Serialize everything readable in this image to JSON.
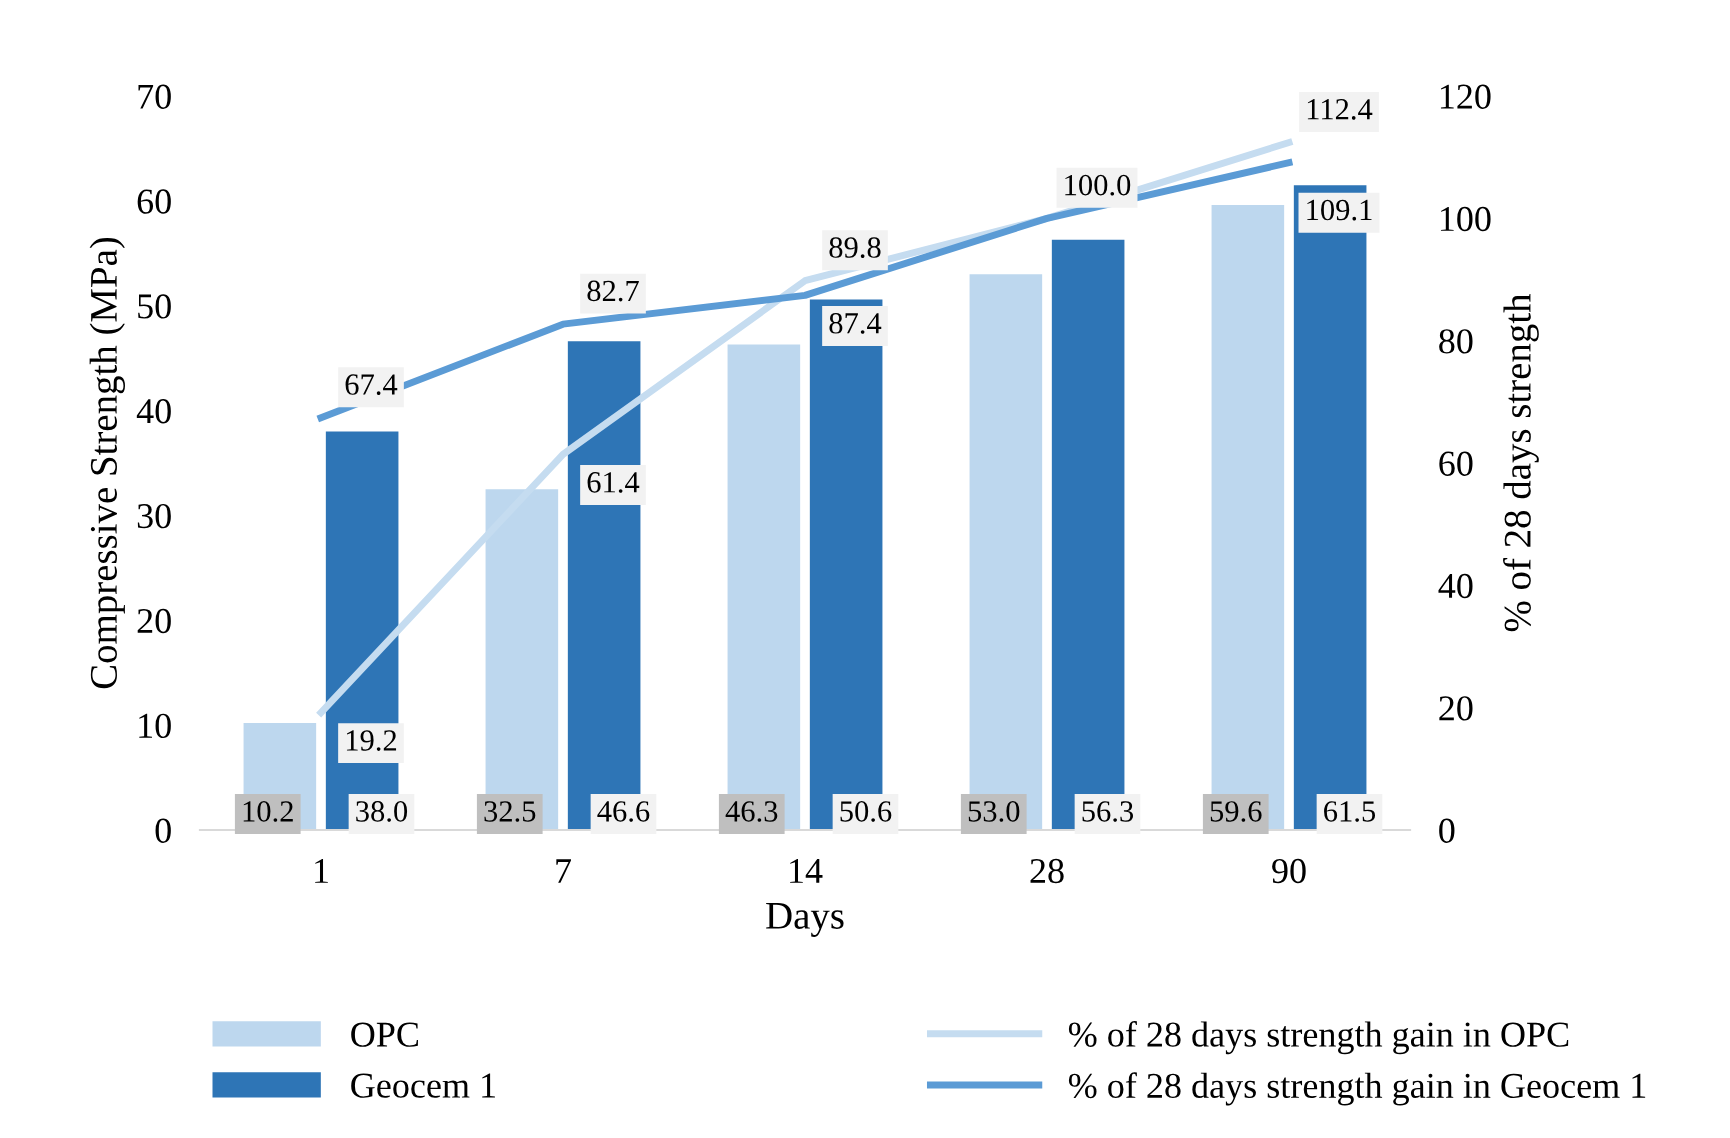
{
  "chart_data": {
    "type": "bar",
    "xlabel": "Days",
    "ylabel": "Compressive Strength (MPa)",
    "y2label": "% of 28 days strength",
    "categories": [
      "1",
      "7",
      "14",
      "28",
      "90"
    ],
    "series": [
      {
        "name": "OPC",
        "color": "#bdd7ee",
        "values": [
          10.2,
          32.5,
          46.3,
          53.0,
          59.6
        ],
        "value_labels": [
          "10.2",
          "32.5",
          "46.3",
          "53.0",
          "59.6"
        ]
      },
      {
        "name": "Geocem 1",
        "color": "#2e75b6",
        "values": [
          38.0,
          46.6,
          50.6,
          56.3,
          61.5
        ],
        "value_labels": [
          "38.0",
          "46.6",
          "50.6",
          "56.3",
          "61.5"
        ]
      },
      {
        "name": "% of 28 days strength gain in OPC",
        "type": "line",
        "axis": "y2",
        "color": "#c5dcf0",
        "values": [
          19.2,
          61.4,
          89.8,
          100.0,
          112.4
        ],
        "value_labels": [
          "19.2",
          "61.4",
          "89.8",
          null,
          "112.4"
        ]
      },
      {
        "name": "% of 28 days strength gain in Geocem 1",
        "type": "line",
        "axis": "y2",
        "color": "#5b9bd5",
        "values": [
          67.4,
          82.7,
          87.4,
          100.0,
          109.1
        ],
        "value_labels": [
          "67.4",
          "82.7",
          "87.4",
          "100.0",
          "109.1"
        ]
      }
    ],
    "ylim": [
      0,
      70
    ],
    "yticks": [
      0,
      10,
      20,
      30,
      40,
      50,
      60,
      70
    ],
    "y2lim": [
      0,
      120
    ],
    "y2ticks": [
      0,
      20,
      40,
      60,
      80,
      100,
      120
    ],
    "grid": false,
    "legend": "bottom",
    "marker": "none",
    "line_style": "solid"
  }
}
